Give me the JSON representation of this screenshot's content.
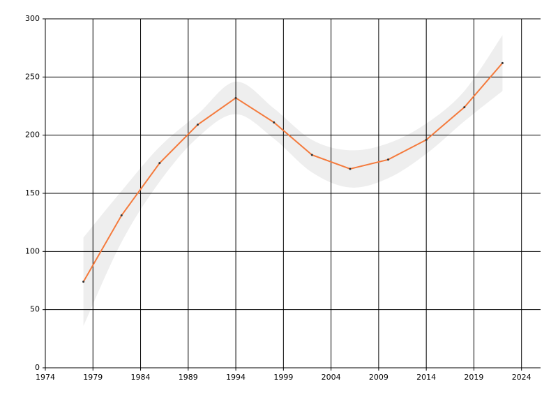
{
  "chart_data": {
    "type": "line",
    "x": [
      1978,
      1982,
      1986,
      1990,
      1994,
      1998,
      2002,
      2006,
      2010,
      2014,
      2018,
      2022
    ],
    "series": [
      {
        "color": "#f47a3c",
        "band_color": "#eeeeee",
        "values": [
          74,
          131,
          176,
          209,
          232,
          211,
          183,
          171,
          179,
          196,
          224,
          262
        ],
        "upper": [
          112,
          152,
          190,
          218,
          246,
          223,
          196,
          187,
          193,
          210,
          238,
          286
        ],
        "lower": [
          36,
          108,
          160,
          198,
          218,
          197,
          168,
          155,
          163,
          184,
          212,
          238
        ]
      }
    ],
    "xlim": [
      1974,
      2026
    ],
    "xticks": [
      1974,
      1979,
      1984,
      1989,
      1994,
      1999,
      2004,
      2009,
      2014,
      2019,
      2024
    ],
    "ylim": [
      0,
      300
    ],
    "yticks": [
      0,
      50,
      100,
      150,
      200,
      250,
      300
    ],
    "grid": true
  }
}
